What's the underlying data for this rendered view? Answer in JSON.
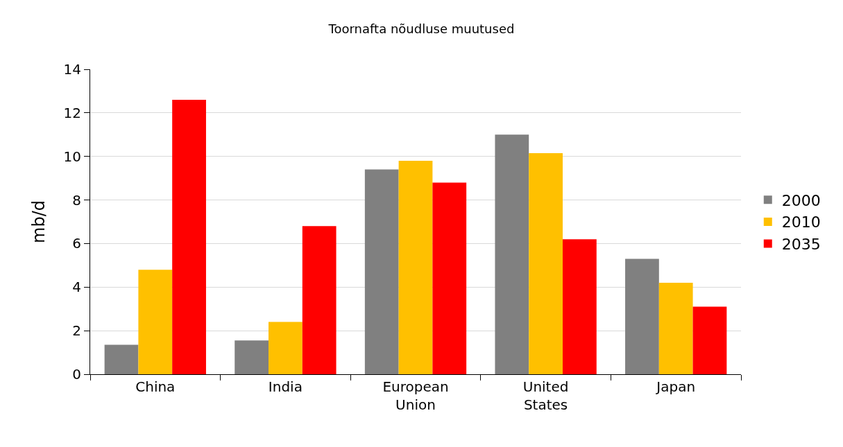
{
  "chart_data": {
    "type": "bar",
    "title": "Toornafta nõudluse muutused",
    "ylabel": "mb/d",
    "categories": [
      "China",
      "India",
      "European Union",
      "United States",
      "Japan"
    ],
    "series": [
      {
        "name": "2000",
        "color": "#808080",
        "values": [
          1.35,
          1.55,
          9.4,
          11.0,
          5.3
        ]
      },
      {
        "name": "2010",
        "color": "#ffc000",
        "values": [
          4.8,
          2.4,
          9.8,
          10.15,
          4.2
        ]
      },
      {
        "name": "2035",
        "color": "#ff0000",
        "values": [
          12.6,
          6.8,
          8.8,
          6.2,
          3.1
        ]
      }
    ],
    "ylim": [
      0,
      14
    ],
    "yticks": [
      0,
      2,
      4,
      6,
      8,
      10,
      12,
      14
    ],
    "grid": "y",
    "legend": "right"
  }
}
